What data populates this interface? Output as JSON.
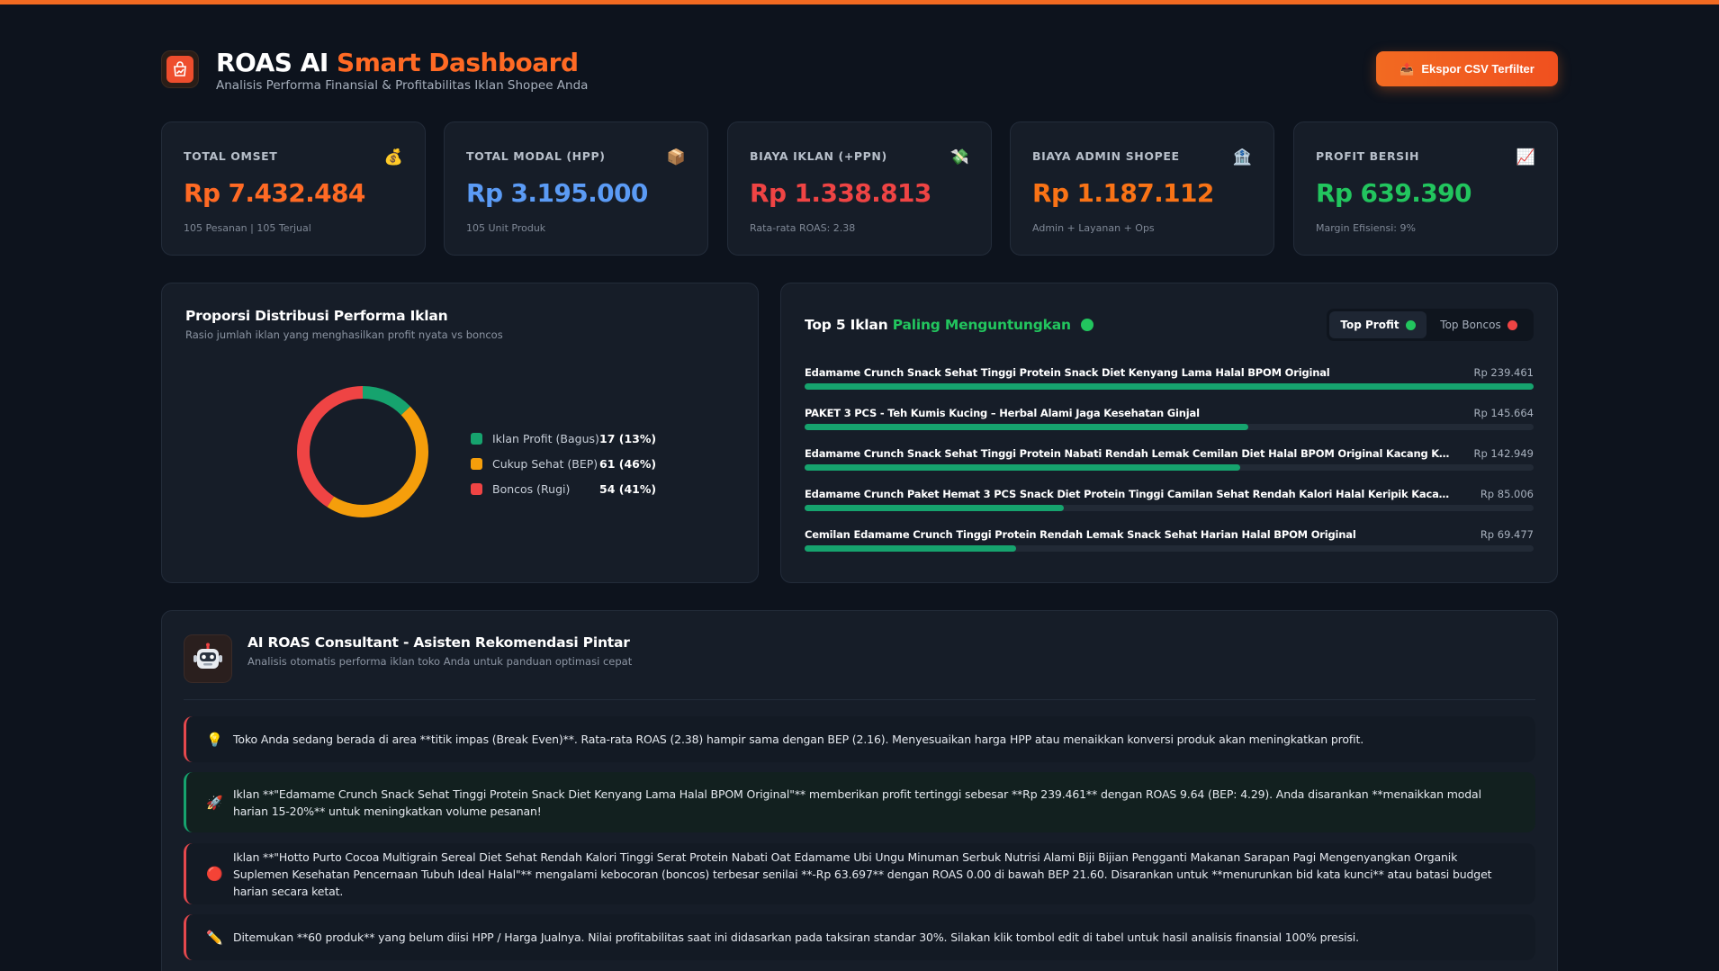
{
  "header": {
    "title_main": "ROAS AI",
    "title_accent": "Smart Dashboard",
    "subtitle": "Analisis Performa Finansial & Profitabilitas Iklan Shopee Anda",
    "export_label": "Ekspor CSV Terfilter",
    "logo_icon": "shopping-bag-chart-icon"
  },
  "stats": [
    {
      "label": "TOTAL OMSET",
      "value": "Rp 7.432.484",
      "sub": "105 Pesanan | 105 Terjual",
      "icon": "💰",
      "color": "#ff6a24"
    },
    {
      "label": "TOTAL MODAL (HPP)",
      "value": "Rp 3.195.000",
      "sub": "105 Unit Produk",
      "icon": "📦",
      "color": "#5b9bf5"
    },
    {
      "label": "BIAYA IKLAN (+PPN)",
      "value": "Rp 1.338.813",
      "sub": "Rata-rata ROAS: 2.38",
      "icon": "💸",
      "color": "#ef4444"
    },
    {
      "label": "BIAYA ADMIN SHOPEE",
      "value": "Rp 1.187.112",
      "sub": "Admin + Layanan + Ops",
      "icon": "🏦",
      "color": "#f97316"
    },
    {
      "label": "PROFIT BERSIH",
      "value": "Rp 639.390",
      "sub": "Margin Efisiensi: 9%",
      "icon": "📈",
      "color": "#22c55e"
    }
  ],
  "distribution": {
    "title": "Proporsi Distribusi Performa Iklan",
    "subtitle": "Rasio jumlah iklan yang menghasilkan profit nyata vs boncos",
    "chart_data": {
      "type": "pie",
      "categories": [
        "Iklan Profit (Bagus)",
        "Cukup Sehat (BEP)",
        "Boncos (Rugi)"
      ],
      "values": [
        17,
        61,
        54
      ],
      "percent": [
        13,
        46,
        41
      ],
      "colors": [
        "#16a36e",
        "#f59e0b",
        "#ef4444"
      ]
    },
    "legend": [
      {
        "label": "Iklan Profit (Bagus)",
        "value": "17 (13%)",
        "color": "#16a36e"
      },
      {
        "label": "Cukup Sehat (BEP)",
        "value": "61 (46%)",
        "color": "#f59e0b"
      },
      {
        "label": "Boncos (Rugi)",
        "value": "54 (41%)",
        "color": "#ef4444"
      }
    ]
  },
  "top5": {
    "title_main": "Top 5 Iklan",
    "title_accent": "Paling Menguntungkan",
    "tabs": [
      {
        "label": "Top Profit",
        "color": "#22c55e",
        "active": true
      },
      {
        "label": "Top Boncos",
        "color": "#ef4444",
        "active": false
      }
    ],
    "chart_data": {
      "type": "bar",
      "categories": [
        "Edamame Crunch Snack Sehat Tinggi Protein Snack Diet Kenyang Lama Halal BPOM Original",
        "PAKET 3 PCS - Teh Kumis Kucing – Herbal Alami Jaga Kesehatan Ginjal",
        "Edamame Crunch Snack Sehat Tinggi Protein Nabati Rendah Lemak Cemilan Diet Halal BPOM Original Kacang Kedelai Hijau Nutrisi Sehat",
        "Edamame Crunch Paket Hemat 3 PCS Snack Diet Protein Tinggi Camilan Sehat Rendah Kalori Halal Keripik Kacang Kedelai Alami Tanpa Pengawet",
        "Cemilan Edamame Crunch Tinggi Protein Rendah Lemak Snack Sehat Harian Halal BPOM Original"
      ],
      "values": [
        239461,
        145664,
        142949,
        85006,
        69477
      ],
      "labels": [
        "Rp 239.461",
        "Rp 145.664",
        "Rp 142.949",
        "Rp 85.006",
        "Rp 69.477"
      ],
      "max": 239461
    }
  },
  "ai": {
    "title": "AI ROAS Consultant - Asisten Rekomendasi Pintar",
    "subtitle": "Analisis otomatis performa iklan toko Anda untuk panduan optimasi cepat",
    "messages": [
      {
        "icon": "💡",
        "accent": "red",
        "text": "Toko Anda sedang berada di area **titik impas (Break Even)**. Rata-rata ROAS (2.38) hampir sama dengan BEP (2.16). Menyesuaikan harga HPP atau menaikkan konversi produk akan meningkatkan profit."
      },
      {
        "icon": "🚀",
        "accent": "green",
        "text": "Iklan **\"Edamame Crunch Snack Sehat Tinggi Protein Snack Diet Kenyang Lama Halal BPOM Original\"** memberikan profit tertinggi sebesar **Rp 239.461** dengan ROAS 9.64 (BEP: 4.29). Anda disarankan **menaikkan modal harian 15-20%** untuk meningkatkan volume pesanan!"
      },
      {
        "icon": "🔴",
        "accent": "red",
        "text": "Iklan **\"Hotto Purto Cocoa Multigrain Sereal Diet Sehat Rendah Kalori Tinggi Serat Protein Nabati Oat Edamame Ubi Ungu Minuman Serbuk Nutrisi Alami Biji Bijian Pengganti Makanan Sarapan Pagi Mengenyangkan Organik Suplemen Kesehatan Pencernaan Tubuh Ideal Halal\"** mengalami kebocoran (boncos) terbesar senilai **-Rp 63.697** dengan ROAS 0.00 di bawah BEP 21.60. Disarankan untuk **menurunkan bid kata kunci** atau batasi budget harian secara ketat."
      },
      {
        "icon": "✏️",
        "accent": "red",
        "text": "Ditemukan **60 produk** yang belum diisi HPP / Harga Jualnya. Nilai profitabilitas saat ini didasarkan pada taksiran standar 30%. Silakan klik tombol edit di tabel untuk hasil analisis finansial 100% presisi."
      }
    ]
  }
}
